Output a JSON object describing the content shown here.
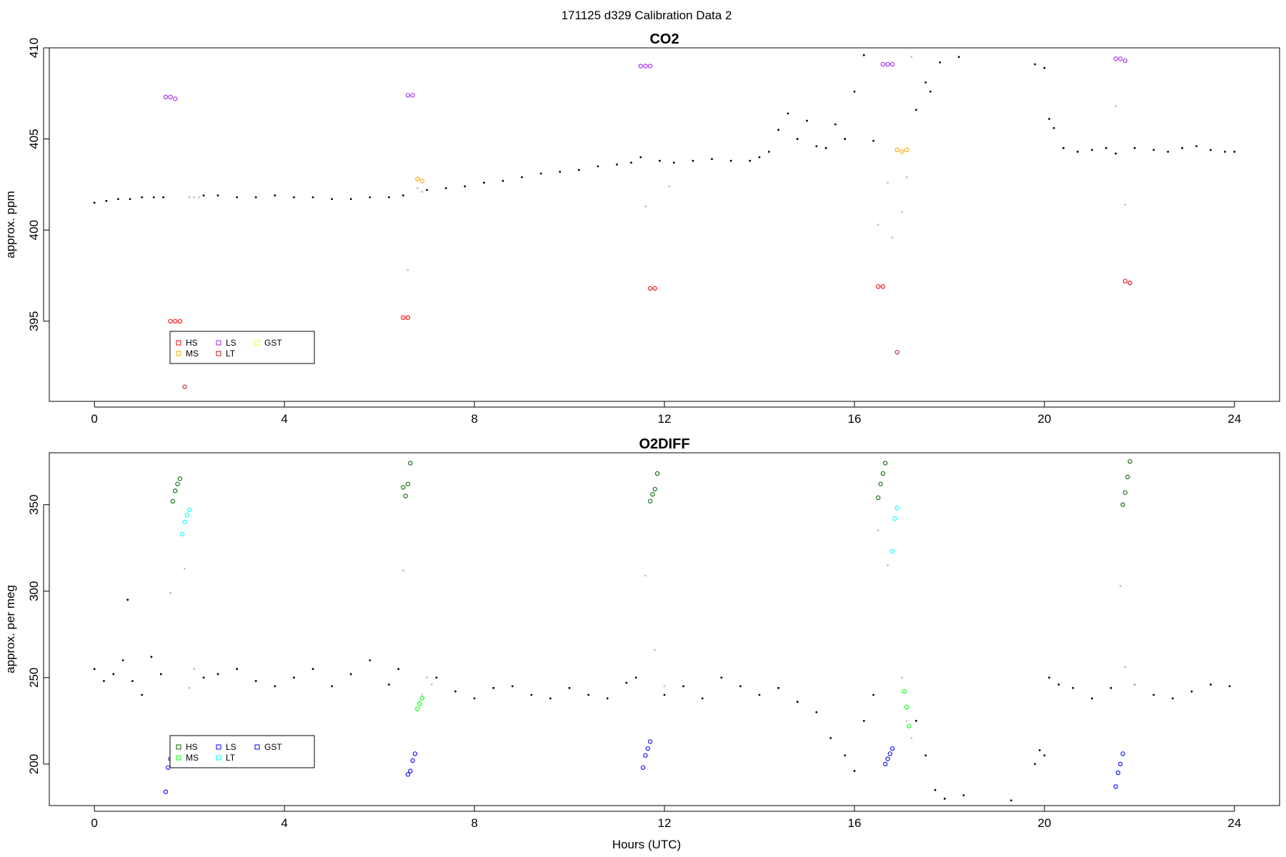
{
  "figure": {
    "title": "171125   d329   Calibration Data 2",
    "xlabel": "Hours (UTC)"
  },
  "chart_data": [
    {
      "type": "scatter",
      "title": "CO2",
      "xlabel": "",
      "ylabel": "approx. ppm",
      "xlim": [
        -0.95,
        24.95
      ],
      "ylim": [
        390.6,
        410
      ],
      "xticks": [
        0,
        4,
        8,
        12,
        16,
        20,
        24
      ],
      "yticks": [
        395,
        400,
        405,
        410
      ],
      "grid": false,
      "legend": {
        "placement": "bottom-left",
        "entries": [
          {
            "name": "HS",
            "color": "#ff0000"
          },
          {
            "name": "MS",
            "color": "#ffa500"
          },
          {
            "name": "LS",
            "color": "#a020f0"
          },
          {
            "name": "LT",
            "color": "#b22222"
          },
          {
            "name": "GST",
            "color": "#ffff00"
          }
        ]
      },
      "series": [
        {
          "name": "baseline",
          "color": "#000000",
          "x": [
            0.0,
            0.25,
            0.5,
            0.75,
            1.0,
            1.25,
            1.45,
            2.3,
            2.6,
            3.0,
            3.4,
            3.8,
            4.2,
            4.6,
            5.0,
            5.4,
            5.8,
            6.2,
            6.5,
            7.0,
            7.4,
            7.8,
            8.2,
            8.6,
            9.0,
            9.4,
            9.8,
            10.2,
            10.6,
            11.0,
            11.3,
            11.5,
            11.9,
            12.2,
            12.6,
            13.0,
            13.4,
            13.8,
            14.0,
            14.2,
            14.4,
            14.6,
            14.8,
            15.0,
            15.2,
            15.4,
            15.6,
            15.8,
            16.0,
            16.2,
            16.4,
            17.3,
            17.5,
            17.6,
            17.8,
            18.2,
            19.8,
            20.0,
            20.1,
            20.2,
            20.4,
            20.7,
            21.0,
            21.3,
            21.5,
            21.9,
            22.3,
            22.6,
            22.9,
            23.2,
            23.5,
            23.8,
            24.0
          ],
          "y": [
            401.5,
            401.6,
            401.7,
            401.7,
            401.8,
            401.8,
            401.8,
            401.9,
            401.9,
            401.8,
            401.8,
            401.9,
            401.8,
            401.8,
            401.7,
            401.7,
            401.8,
            401.8,
            401.9,
            402.2,
            402.3,
            402.4,
            402.6,
            402.7,
            402.9,
            403.1,
            403.2,
            403.3,
            403.5,
            403.6,
            403.7,
            404.0,
            403.8,
            403.7,
            403.8,
            403.9,
            403.8,
            403.8,
            404.0,
            404.3,
            405.5,
            406.4,
            405.0,
            406.0,
            404.6,
            404.5,
            405.8,
            405.0,
            407.6,
            409.6,
            404.9,
            406.6,
            408.1,
            407.6,
            409.2,
            409.5,
            409.1,
            408.9,
            406.1,
            405.6,
            404.5,
            404.3,
            404.4,
            404.5,
            404.2,
            404.5,
            404.4,
            404.3,
            404.5,
            404.6,
            404.4,
            404.3,
            404.3
          ]
        },
        {
          "name": "transition",
          "color": "#bebebe",
          "x": [
            2.0,
            2.1,
            2.2,
            6.6,
            6.8,
            6.9,
            11.6,
            12.1,
            16.5,
            16.7,
            16.8,
            17.0,
            17.1,
            17.2,
            21.5,
            21.7
          ],
          "y": [
            401.8,
            401.8,
            401.8,
            397.8,
            402.3,
            402.1,
            401.3,
            402.4,
            400.3,
            402.6,
            399.6,
            401.0,
            402.9,
            409.5,
            406.8,
            401.4
          ]
        },
        {
          "name": "HS",
          "color": "#ff0000",
          "x": [
            1.6,
            1.7,
            1.8,
            6.5,
            6.6,
            11.7,
            11.8,
            16.5,
            16.6,
            21.7,
            21.8
          ],
          "y": [
            395.0,
            395.0,
            395.0,
            395.2,
            395.2,
            396.8,
            396.8,
            396.9,
            396.9,
            397.2,
            397.1
          ]
        },
        {
          "name": "MS",
          "color": "#ffa500",
          "x": [
            6.8,
            6.9,
            16.9,
            17.0,
            17.1
          ],
          "y": [
            402.8,
            402.7,
            404.4,
            404.3,
            404.4
          ]
        },
        {
          "name": "LS",
          "color": "#a020f0",
          "x": [
            1.5,
            1.6,
            1.7,
            6.6,
            6.7,
            11.5,
            11.6,
            11.7,
            16.6,
            16.7,
            16.8,
            21.5,
            21.6,
            21.7
          ],
          "y": [
            407.3,
            407.3,
            407.2,
            407.4,
            407.4,
            409.0,
            409.0,
            409.0,
            409.1,
            409.1,
            409.1,
            409.4,
            409.4,
            409.3
          ]
        },
        {
          "name": "LT",
          "color": "#b22222",
          "x": [
            1.9,
            16.9
          ],
          "y": [
            391.4,
            393.3
          ]
        }
      ]
    },
    {
      "type": "scatter",
      "title": "O2DIFF",
      "xlabel": "Hours (UTC)",
      "ylabel": "approx. per meg",
      "xlim": [
        -0.95,
        24.95
      ],
      "ylim": [
        176,
        380
      ],
      "xticks": [
        0,
        4,
        8,
        12,
        16,
        20,
        24
      ],
      "yticks": [
        200,
        250,
        300,
        350
      ],
      "grid": false,
      "legend": {
        "placement": "bottom-left",
        "entries": [
          {
            "name": "HS",
            "color": "#006400"
          },
          {
            "name": "MS",
            "color": "#00ff00"
          },
          {
            "name": "LS",
            "color": "#0000ff"
          },
          {
            "name": "LT",
            "color": "#00ffff"
          },
          {
            "name": "GST",
            "color": "#0000cd"
          }
        ]
      },
      "series": [
        {
          "name": "baseline",
          "color": "#000000",
          "x": [
            0.0,
            0.2,
            0.4,
            0.6,
            0.7,
            0.8,
            1.0,
            1.2,
            1.4,
            2.3,
            2.6,
            3.0,
            3.4,
            3.8,
            4.2,
            4.6,
            5.0,
            5.4,
            5.8,
            6.2,
            6.4,
            7.2,
            7.6,
            8.0,
            8.4,
            8.8,
            9.2,
            9.6,
            10.0,
            10.4,
            10.8,
            11.2,
            11.4,
            12.0,
            12.4,
            12.8,
            13.2,
            13.6,
            14.0,
            14.4,
            14.8,
            15.2,
            15.5,
            15.8,
            16.0,
            16.2,
            16.4,
            17.3,
            17.5,
            17.7,
            17.9,
            18.3,
            19.3,
            19.8,
            19.9,
            20.0,
            20.1,
            20.3,
            20.6,
            21.0,
            21.4,
            21.9,
            22.3,
            22.7,
            23.1,
            23.5,
            23.9
          ],
          "y": [
            255,
            248,
            252,
            260,
            295,
            248,
            240,
            262,
            252,
            250,
            252,
            255,
            248,
            245,
            250,
            255,
            245,
            252,
            260,
            246,
            255,
            250,
            242,
            238,
            244,
            245,
            240,
            238,
            244,
            240,
            238,
            247,
            250,
            240,
            245,
            238,
            250,
            245,
            240,
            244,
            236,
            230,
            215,
            205,
            196,
            225,
            240,
            225,
            205,
            185,
            180,
            182,
            179,
            200,
            208,
            205,
            250,
            246,
            244,
            238,
            244,
            246,
            240,
            238,
            242,
            246,
            245
          ]
        },
        {
          "name": "transition",
          "color": "#bebebe",
          "x": [
            1.6,
            1.9,
            2.0,
            2.1,
            6.5,
            6.9,
            7.0,
            7.1,
            11.6,
            11.8,
            12.0,
            16.5,
            16.7,
            17.0,
            17.1,
            17.2,
            21.6,
            21.7,
            21.9
          ],
          "y": [
            299,
            313,
            244,
            255,
            312,
            240,
            250,
            246,
            309,
            266,
            245,
            335,
            315,
            250,
            225,
            215,
            303,
            256,
            246
          ]
        },
        {
          "name": "HS",
          "color": "#006400",
          "x": [
            1.65,
            1.7,
            1.75,
            1.8,
            6.5,
            6.55,
            6.6,
            6.65,
            11.7,
            11.75,
            11.8,
            11.85,
            16.5,
            16.55,
            16.6,
            16.65,
            21.65,
            21.7,
            21.75,
            21.8
          ],
          "y": [
            352,
            358,
            362,
            365,
            360,
            355,
            362,
            374,
            352,
            356,
            359,
            368,
            354,
            362,
            368,
            374,
            350,
            357,
            366,
            375
          ]
        },
        {
          "name": "MS",
          "color": "#00ff00",
          "x": [
            6.8,
            6.85,
            6.9,
            17.05,
            17.1,
            17.15
          ],
          "y": [
            232,
            235,
            238,
            242,
            233,
            222
          ]
        },
        {
          "name": "LS",
          "color": "#0000ff",
          "x": [
            1.5,
            1.55,
            1.6,
            1.65,
            6.6,
            6.65,
            6.7,
            6.75,
            11.55,
            11.6,
            11.65,
            11.7,
            16.65,
            16.7,
            16.75,
            16.8,
            21.5,
            21.55,
            21.6,
            21.65
          ],
          "y": [
            184,
            198,
            203,
            207,
            194,
            196,
            202,
            206,
            198,
            205,
            209,
            213,
            200,
            203,
            206,
            209,
            187,
            195,
            200,
            206
          ]
        },
        {
          "name": "LT",
          "color": "#00ffff",
          "x": [
            1.85,
            1.9,
            1.95,
            2.0,
            16.8,
            16.85,
            16.9
          ],
          "y": [
            333,
            340,
            344,
            347,
            323,
            342,
            348
          ]
        }
      ]
    }
  ]
}
